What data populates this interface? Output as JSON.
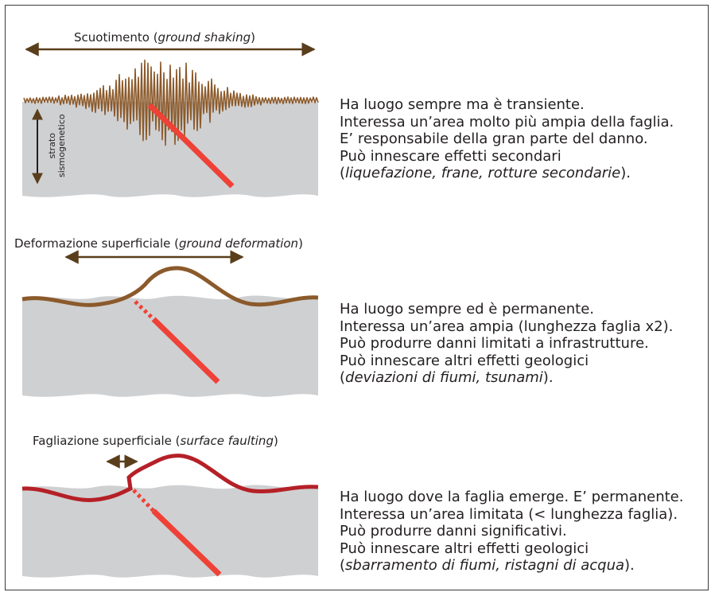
{
  "colors": {
    "ground": "#cfd0d2",
    "shaking": "#8b5a2b",
    "deformation": "#8b5a2b",
    "faulting": "#b52027",
    "fault": "#ef4136",
    "arrow": "#5a3e1b"
  },
  "panels": [
    {
      "title": "Scuotimento",
      "title_italic": "ground shaking",
      "strata_label_line1": "strato",
      "strata_label_line2": "sismogenetico",
      "lines": [
        "Ha luogo sempre ma è transiente.",
        "Interessa un’area molto più ampia della faglia.",
        "E’ responsabile della gran parte del danno.",
        "Può innescare effetti secondari"
      ],
      "last_line_italic": "liquefazione, frane, rotture secondarie"
    },
    {
      "title": "Deformazione superficiale",
      "title_italic": "ground deformation",
      "lines": [
        "Ha luogo sempre ed è permanente.",
        "Interessa un’area ampia (lunghezza faglia x2).",
        "Può produrre danni limitati a infrastrutture.",
        "Può innescare altri effetti geologici"
      ],
      "last_line_italic": "deviazioni di fiumi, tsunami"
    },
    {
      "title": "Fagliazione superficiale",
      "title_italic": "surface faulting",
      "lines": [
        "Ha luogo dove la faglia emerge. E’ permanente.",
        "Interessa un’area limitata (< lunghezza faglia).",
        "Può produrre danni significativi.",
        "Può innescare altri effetti geologici"
      ],
      "last_line_italic": "sbarramento di fiumi, ristagni di acqua"
    }
  ]
}
